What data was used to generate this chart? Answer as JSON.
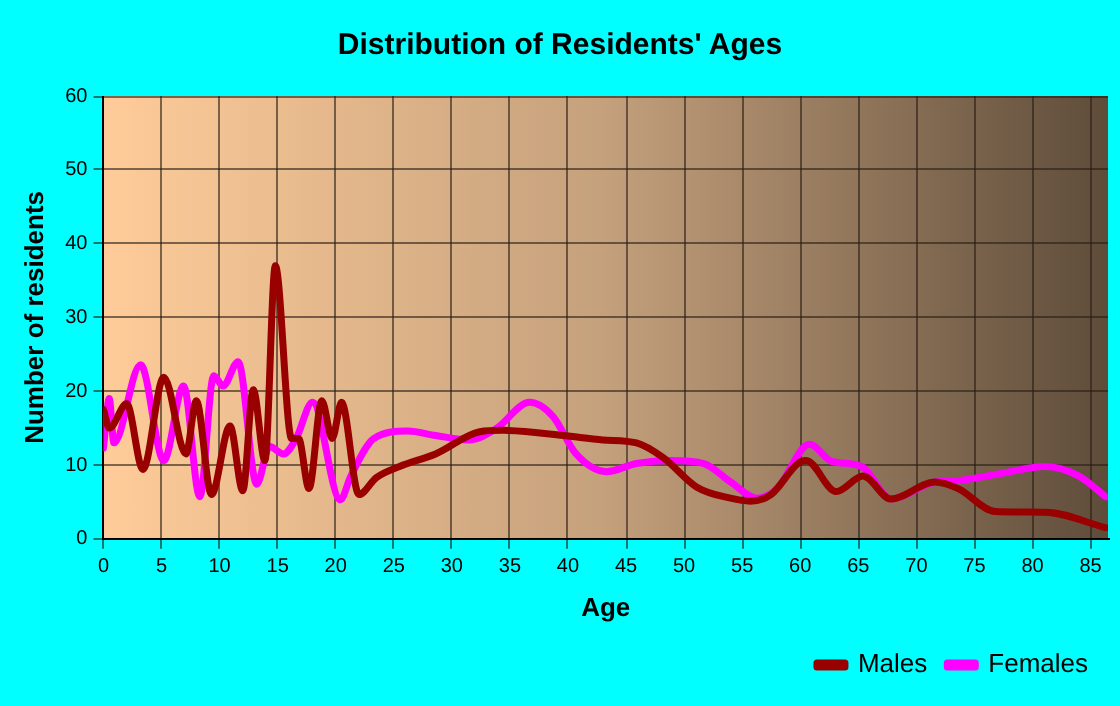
{
  "chart_data": {
    "type": "line",
    "title": "Distribution of Residents' Ages",
    "xlabel": "Age",
    "ylabel": "Number of residents",
    "xlim": [
      0,
      86.5
    ],
    "xticks": [
      0,
      5,
      10,
      15,
      20,
      25,
      30,
      35,
      40,
      45,
      50,
      55,
      60,
      65,
      70,
      75,
      80,
      85
    ],
    "ylim": [
      0,
      60
    ],
    "yticks": [
      0,
      10,
      20,
      30,
      40,
      50,
      60
    ],
    "grid": true,
    "legend": "bottom right",
    "marker": "none",
    "line_style": "solid",
    "series": [
      {
        "name": "Males",
        "color": "#990000",
        "x": [
          0,
          0.5,
          2,
          3.4,
          5.2,
          7.1,
          8,
          9.3,
          10.9,
          12,
          12.9,
          13.9,
          14.8,
          16.2,
          16.8,
          17.7,
          18.8,
          19.7,
          20.5,
          22,
          23.5,
          25.5,
          28.6,
          32.4,
          34.4,
          39.6,
          43,
          45.9,
          48.2,
          51.1,
          54,
          55.7,
          57.5,
          59.8,
          60.5,
          63.1,
          65.4,
          67.8,
          71.6,
          73.6,
          76.8,
          81.1,
          86.3
        ],
        "values": [
          17.5,
          15,
          18.3,
          9.4,
          21.9,
          11.5,
          18.7,
          6,
          15.3,
          6.5,
          20.2,
          10.6,
          37,
          13.6,
          13.6,
          6.8,
          18.7,
          13.6,
          18.5,
          6,
          8.3,
          9.8,
          11.5,
          14.5,
          14.7,
          14,
          13.4,
          13,
          11,
          7,
          5.5,
          5.1,
          6,
          10.2,
          10.6,
          6.4,
          8.5,
          5.4,
          7.7,
          6.8,
          3.7,
          3.6,
          1.5
        ]
      },
      {
        "name": "Females",
        "color": "#ff00ff",
        "x": [
          0,
          0.5,
          0.9,
          3.2,
          5.2,
          6.9,
          8.3,
          9.5,
          10.3,
          11.6,
          13.2,
          14.3,
          15.5,
          16.6,
          18,
          20.4,
          21.3,
          23.3,
          26.2,
          28.6,
          31.5,
          33.8,
          36.7,
          38.7,
          40.7,
          43.3,
          45.9,
          48.8,
          51.7,
          54,
          56.3,
          58,
          60.8,
          62.7,
          65.3,
          67.8,
          71.6,
          73.6,
          77.1,
          81.1,
          84,
          86.3
        ],
        "values": [
          12.3,
          19,
          13,
          23.6,
          10.6,
          20.7,
          5.7,
          22.1,
          20.7,
          24,
          7.4,
          12.5,
          11.5,
          13.6,
          18.5,
          5.3,
          8.5,
          13.6,
          14.6,
          14,
          13.4,
          14.9,
          18.5,
          16.6,
          11.5,
          9.1,
          10.2,
          10.6,
          10.2,
          7.7,
          5.5,
          6.8,
          12.8,
          10.5,
          9.8,
          5.4,
          7.7,
          7.9,
          8.8,
          9.8,
          8.5,
          5.7
        ]
      }
    ]
  }
}
